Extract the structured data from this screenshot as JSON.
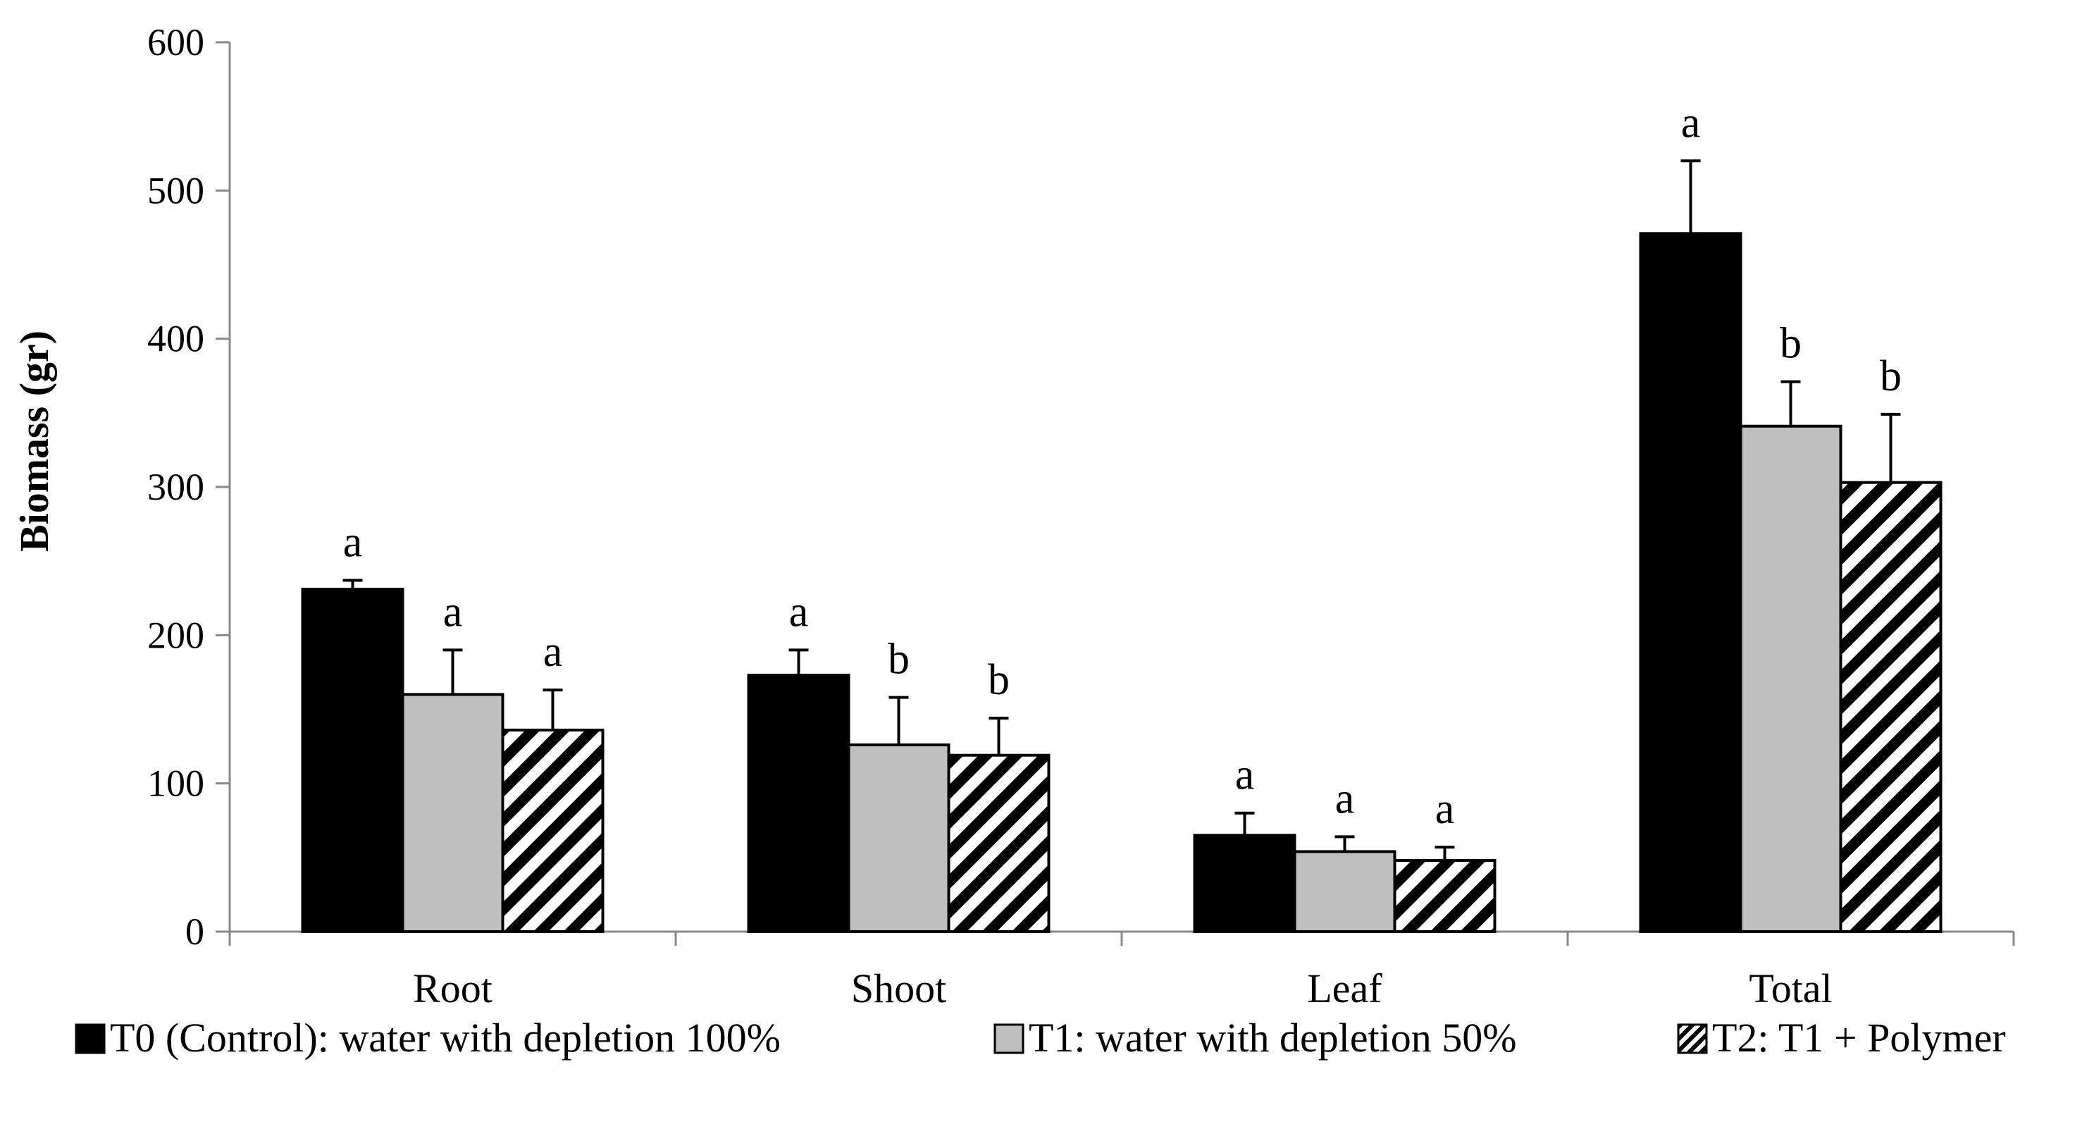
{
  "chart_data": {
    "type": "bar",
    "title": "",
    "xlabel": "",
    "ylabel": "Biomass (gr)",
    "ylim": [
      0,
      600
    ],
    "yticks": [
      0,
      100,
      200,
      300,
      400,
      500,
      600
    ],
    "categories": [
      "Root",
      "Shoot",
      "Leaf",
      "Total"
    ],
    "grid": false,
    "legend_position": "bottom",
    "series": [
      {
        "name": "T0 (Control): water with depletion 100%",
        "fill": "solid",
        "color": "#000000",
        "values": [
          231,
          173,
          65,
          471
        ],
        "errors": [
          6,
          17,
          15,
          49
        ],
        "letters": [
          "a",
          "a",
          "a",
          "a"
        ]
      },
      {
        "name": "T1: water with depletion 50%",
        "fill": "solid",
        "color": "#bfbfbf",
        "values": [
          160,
          126,
          54,
          341
        ],
        "errors": [
          30,
          32,
          10,
          30
        ],
        "letters": [
          "a",
          "b",
          "a",
          "b"
        ]
      },
      {
        "name": "T2: T1 + Polymer",
        "fill": "hatch",
        "color": "#000000",
        "values": [
          136,
          119,
          48,
          303
        ],
        "errors": [
          27,
          25,
          9,
          46
        ],
        "letters": [
          "a",
          "b",
          "a",
          "b"
        ]
      }
    ]
  }
}
